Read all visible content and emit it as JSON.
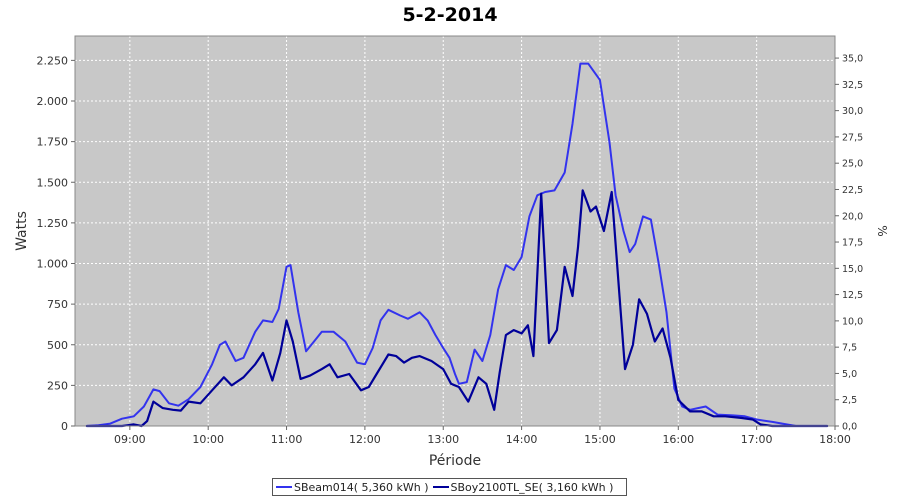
{
  "chart_data": {
    "type": "line",
    "title": "5-2-2014",
    "xlabel": "Période",
    "ylabel": "Watts",
    "y2label": "%",
    "xlim": [
      8.3,
      18.0
    ],
    "ylim": [
      0,
      2400
    ],
    "y2lim": [
      0,
      37.1
    ],
    "x_ticks": [
      {
        "v": 9,
        "label": "09:00"
      },
      {
        "v": 10,
        "label": "10:00"
      },
      {
        "v": 11,
        "label": "11:00"
      },
      {
        "v": 12,
        "label": "12:00"
      },
      {
        "v": 13,
        "label": "13:00"
      },
      {
        "v": 14,
        "label": "14:00"
      },
      {
        "v": 15,
        "label": "15:00"
      },
      {
        "v": 16,
        "label": "16:00"
      },
      {
        "v": 17,
        "label": "17:00"
      },
      {
        "v": 18,
        "label": "18:00"
      }
    ],
    "y_ticks": [
      {
        "v": 0,
        "label": "0"
      },
      {
        "v": 250,
        "label": "250"
      },
      {
        "v": 500,
        "label": "500"
      },
      {
        "v": 750,
        "label": "750"
      },
      {
        "v": 1000,
        "label": "1.000"
      },
      {
        "v": 1250,
        "label": "1.250"
      },
      {
        "v": 1500,
        "label": "1.500"
      },
      {
        "v": 1750,
        "label": "1.750"
      },
      {
        "v": 2000,
        "label": "2.000"
      },
      {
        "v": 2250,
        "label": "2.250"
      }
    ],
    "y2_ticks": [
      {
        "v": 0,
        "label": "0,0"
      },
      {
        "v": 2.5,
        "label": "2,5"
      },
      {
        "v": 5,
        "label": "5,0"
      },
      {
        "v": 7.5,
        "label": "7,5"
      },
      {
        "v": 10,
        "label": "10,0"
      },
      {
        "v": 12.5,
        "label": "12,5"
      },
      {
        "v": 15,
        "label": "15,0"
      },
      {
        "v": 17.5,
        "label": "17,5"
      },
      {
        "v": 20,
        "label": "20,0"
      },
      {
        "v": 22.5,
        "label": "22,5"
      },
      {
        "v": 25,
        "label": "25,0"
      },
      {
        "v": 27.5,
        "label": "27,5"
      },
      {
        "v": 30,
        "label": "30,0"
      },
      {
        "v": 32.5,
        "label": "32,5"
      },
      {
        "v": 35,
        "label": "35,0"
      }
    ],
    "grid": true,
    "legend_position": "bottom",
    "series": [
      {
        "name": "SBeam014( 5,360 kWh )",
        "color": "#3333ee",
        "points": [
          [
            8.45,
            0
          ],
          [
            8.6,
            5
          ],
          [
            8.75,
            15
          ],
          [
            8.9,
            45
          ],
          [
            9.05,
            60
          ],
          [
            9.18,
            120
          ],
          [
            9.3,
            225
          ],
          [
            9.38,
            215
          ],
          [
            9.5,
            140
          ],
          [
            9.62,
            125
          ],
          [
            9.75,
            165
          ],
          [
            9.9,
            240
          ],
          [
            10.05,
            380
          ],
          [
            10.15,
            500
          ],
          [
            10.22,
            520
          ],
          [
            10.35,
            400
          ],
          [
            10.45,
            420
          ],
          [
            10.6,
            580
          ],
          [
            10.7,
            650
          ],
          [
            10.82,
            640
          ],
          [
            10.9,
            720
          ],
          [
            11.0,
            980
          ],
          [
            11.05,
            990
          ],
          [
            11.15,
            700
          ],
          [
            11.25,
            460
          ],
          [
            11.35,
            520
          ],
          [
            11.45,
            580
          ],
          [
            11.6,
            580
          ],
          [
            11.75,
            520
          ],
          [
            11.9,
            390
          ],
          [
            12.0,
            380
          ],
          [
            12.1,
            480
          ],
          [
            12.2,
            650
          ],
          [
            12.3,
            715
          ],
          [
            12.45,
            680
          ],
          [
            12.55,
            660
          ],
          [
            12.7,
            700
          ],
          [
            12.8,
            650
          ],
          [
            12.9,
            560
          ],
          [
            13.0,
            480
          ],
          [
            13.08,
            420
          ],
          [
            13.15,
            320
          ],
          [
            13.2,
            260
          ],
          [
            13.3,
            270
          ],
          [
            13.4,
            470
          ],
          [
            13.5,
            400
          ],
          [
            13.6,
            560
          ],
          [
            13.7,
            840
          ],
          [
            13.8,
            990
          ],
          [
            13.9,
            960
          ],
          [
            14.0,
            1040
          ],
          [
            14.1,
            1290
          ],
          [
            14.2,
            1420
          ],
          [
            14.3,
            1440
          ],
          [
            14.42,
            1450
          ],
          [
            14.55,
            1560
          ],
          [
            14.65,
            1860
          ],
          [
            14.75,
            2230
          ],
          [
            14.85,
            2230
          ],
          [
            15.0,
            2130
          ],
          [
            15.12,
            1750
          ],
          [
            15.2,
            1420
          ],
          [
            15.3,
            1200
          ],
          [
            15.38,
            1070
          ],
          [
            15.45,
            1120
          ],
          [
            15.55,
            1290
          ],
          [
            15.65,
            1270
          ],
          [
            15.75,
            1000
          ],
          [
            15.85,
            700
          ],
          [
            15.95,
            230
          ],
          [
            16.05,
            120
          ],
          [
            16.15,
            100
          ],
          [
            16.25,
            110
          ],
          [
            16.35,
            120
          ],
          [
            16.5,
            70
          ],
          [
            16.7,
            65
          ],
          [
            16.85,
            60
          ],
          [
            17.0,
            40
          ],
          [
            17.2,
            25
          ],
          [
            17.5,
            0
          ],
          [
            17.9,
            0
          ]
        ]
      },
      {
        "name": "SBoy2100TL_SE( 3,160 kWh )",
        "color": "#000099",
        "points": [
          [
            8.45,
            0
          ],
          [
            8.9,
            0
          ],
          [
            9.05,
            10
          ],
          [
            9.15,
            0
          ],
          [
            9.22,
            30
          ],
          [
            9.3,
            150
          ],
          [
            9.42,
            110
          ],
          [
            9.55,
            100
          ],
          [
            9.65,
            95
          ],
          [
            9.75,
            150
          ],
          [
            9.9,
            140
          ],
          [
            10.05,
            220
          ],
          [
            10.2,
            300
          ],
          [
            10.3,
            250
          ],
          [
            10.45,
            300
          ],
          [
            10.6,
            380
          ],
          [
            10.7,
            450
          ],
          [
            10.82,
            280
          ],
          [
            10.92,
            450
          ],
          [
            11.0,
            650
          ],
          [
            11.08,
            520
          ],
          [
            11.18,
            290
          ],
          [
            11.3,
            310
          ],
          [
            11.45,
            350
          ],
          [
            11.55,
            380
          ],
          [
            11.65,
            300
          ],
          [
            11.8,
            320
          ],
          [
            11.95,
            220
          ],
          [
            12.05,
            240
          ],
          [
            12.15,
            320
          ],
          [
            12.3,
            440
          ],
          [
            12.4,
            430
          ],
          [
            12.5,
            390
          ],
          [
            12.6,
            420
          ],
          [
            12.7,
            430
          ],
          [
            12.85,
            400
          ],
          [
            13.0,
            350
          ],
          [
            13.1,
            260
          ],
          [
            13.2,
            240
          ],
          [
            13.32,
            150
          ],
          [
            13.45,
            300
          ],
          [
            13.55,
            260
          ],
          [
            13.65,
            100
          ],
          [
            13.72,
            330
          ],
          [
            13.8,
            560
          ],
          [
            13.9,
            590
          ],
          [
            14.0,
            570
          ],
          [
            14.08,
            620
          ],
          [
            14.15,
            430
          ],
          [
            14.25,
            1430
          ],
          [
            14.35,
            510
          ],
          [
            14.45,
            590
          ],
          [
            14.55,
            980
          ],
          [
            14.65,
            800
          ],
          [
            14.72,
            1100
          ],
          [
            14.78,
            1450
          ],
          [
            14.88,
            1320
          ],
          [
            14.95,
            1350
          ],
          [
            15.05,
            1200
          ],
          [
            15.15,
            1440
          ],
          [
            15.25,
            800
          ],
          [
            15.32,
            350
          ],
          [
            15.42,
            500
          ],
          [
            15.5,
            780
          ],
          [
            15.6,
            690
          ],
          [
            15.7,
            520
          ],
          [
            15.8,
            600
          ],
          [
            15.9,
            420
          ],
          [
            16.0,
            160
          ],
          [
            16.15,
            90
          ],
          [
            16.3,
            90
          ],
          [
            16.45,
            60
          ],
          [
            16.6,
            60
          ],
          [
            16.8,
            50
          ],
          [
            16.95,
            40
          ],
          [
            17.05,
            10
          ],
          [
            17.2,
            0
          ],
          [
            17.9,
            0
          ]
        ]
      }
    ]
  }
}
